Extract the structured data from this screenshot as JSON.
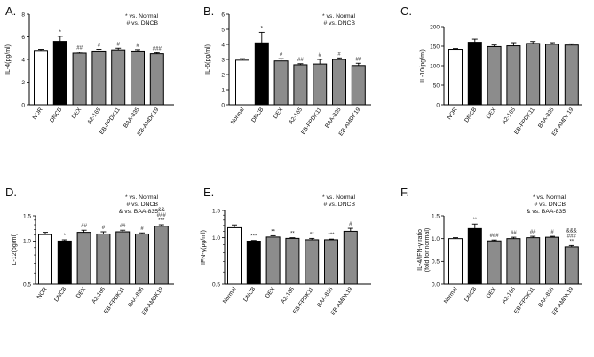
{
  "colors": {
    "control": "#ffffff",
    "dncb": "#000000",
    "treatment": "#8c8c8c",
    "stroke": "#000000"
  },
  "chart_data": [
    {
      "panel": "A.",
      "type": "bar",
      "ylabel": "IL-4(pg/ml)",
      "ylim": [
        0,
        8
      ],
      "yticks": [
        0,
        2,
        4,
        6,
        8
      ],
      "categories": [
        "NOR",
        "DNCB",
        "DEX",
        "A2-165",
        "EB-FPDK11",
        "BAA-835",
        "EB-AMDK19"
      ],
      "values": [
        4.8,
        5.6,
        4.55,
        4.75,
        4.85,
        4.75,
        4.5
      ],
      "errors": [
        0.1,
        0.45,
        0.1,
        0.15,
        0.15,
        0.12,
        0.1
      ],
      "sig": [
        "",
        "*",
        "##",
        "#",
        "#",
        "#",
        "###"
      ],
      "legend": [
        "* vs. Normal",
        "# vs. DNCB"
      ]
    },
    {
      "panel": "B.",
      "type": "bar",
      "ylabel": "IL-6(pg/ml)",
      "ylim": [
        0,
        6
      ],
      "yticks": [
        0,
        1,
        2,
        3,
        4,
        5,
        6
      ],
      "categories": [
        "Normal",
        "DNCB",
        "DEX",
        "A2-165",
        "EB-FPDK11",
        "BAA-835",
        "EB-AMDK19"
      ],
      "values": [
        2.95,
        4.1,
        2.9,
        2.65,
        2.7,
        3.0,
        2.6
      ],
      "errors": [
        0.1,
        0.7,
        0.15,
        0.07,
        0.3,
        0.1,
        0.15
      ],
      "sig": [
        "",
        "*",
        "#",
        "##",
        "#",
        "#",
        "##"
      ],
      "legend": [
        "* vs. Normal",
        "# vs. DNCB"
      ]
    },
    {
      "panel": "C.",
      "type": "bar",
      "ylabel": "IL-10(pg/ml)",
      "ylim": [
        0,
        200
      ],
      "yticks": [
        0,
        50,
        100,
        150,
        200
      ],
      "categories": [
        "NOR",
        "DNCB",
        "DEX",
        "A2-165",
        "EB-FPDK11",
        "BAA-835",
        "EB-AMDK19"
      ],
      "values": [
        142,
        160,
        149,
        151,
        157,
        155,
        153
      ],
      "errors": [
        2,
        8,
        4,
        8,
        5,
        4,
        3
      ],
      "sig": [
        "",
        "",
        "",
        "",
        "",
        "",
        ""
      ],
      "legend": []
    },
    {
      "panel": "D.",
      "type": "bar",
      "ylabel": "IL-12(pg/ml)",
      "ylim": [
        0.5,
        1.5
      ],
      "yticks": [
        0.5,
        1.0,
        1.5
      ],
      "ylog": true,
      "categories": [
        "NOR",
        "DNCB",
        "DEX",
        "A2-165",
        "EB-FPDK11",
        "BAA-835",
        "EB-AMDK19"
      ],
      "values": [
        1.11,
        1.0,
        1.15,
        1.12,
        1.16,
        1.12,
        1.27
      ],
      "errors": [
        0.04,
        0.02,
        0.04,
        0.04,
        0.03,
        0.02,
        0.03
      ],
      "sig": [
        "",
        "*",
        "##",
        "#",
        "##",
        "#",
        "&&\n###\n***"
      ],
      "legend": [
        "* vs. Normal",
        "# vs. DNCB",
        "& vs. BAA-835"
      ]
    },
    {
      "panel": "E.",
      "type": "bar",
      "ylabel": "IFN-γ(pg/ml)",
      "ylim": [
        0.5,
        1.5
      ],
      "yticks": [
        0.5,
        1.0,
        1.5
      ],
      "ylog": true,
      "categories": [
        "Normal",
        "DNCB",
        "DEX",
        "A2-165",
        "EB-FPDK11",
        "BAA-835",
        "EB-AMDK19"
      ],
      "values": [
        1.16,
        0.95,
        1.01,
        0.99,
        0.97,
        0.97,
        1.1
      ],
      "errors": [
        0.05,
        0.01,
        0.02,
        0.01,
        0.02,
        0.01,
        0.05
      ],
      "sig": [
        "",
        "***",
        "**",
        "**",
        "**",
        "***",
        "#"
      ],
      "legend": [
        "* vs. Normal",
        "# vs. DNCB"
      ]
    },
    {
      "panel": "F.",
      "type": "bar",
      "ylabel": "IL-4/IFN-γ ratio\n(fold for normal)",
      "ylim": [
        0,
        1.5
      ],
      "yticks": [
        0.0,
        0.5,
        1.0,
        1.5
      ],
      "categories": [
        "Normal",
        "DNCB",
        "DEX",
        "A2-165",
        "EB-FPDK11",
        "BAA-835",
        "EB-AMDK19"
      ],
      "values": [
        1.0,
        1.22,
        0.95,
        1.0,
        1.02,
        1.03,
        0.82
      ],
      "errors": [
        0.02,
        0.1,
        0.02,
        0.03,
        0.03,
        0.02,
        0.03
      ],
      "sig": [
        "",
        "**",
        "###",
        "##",
        "##",
        "#",
        "&&&\n###\n**"
      ],
      "legend": [
        "* vs. Normal",
        "# vs. DNCB",
        "& vs. BAA-835"
      ]
    }
  ]
}
